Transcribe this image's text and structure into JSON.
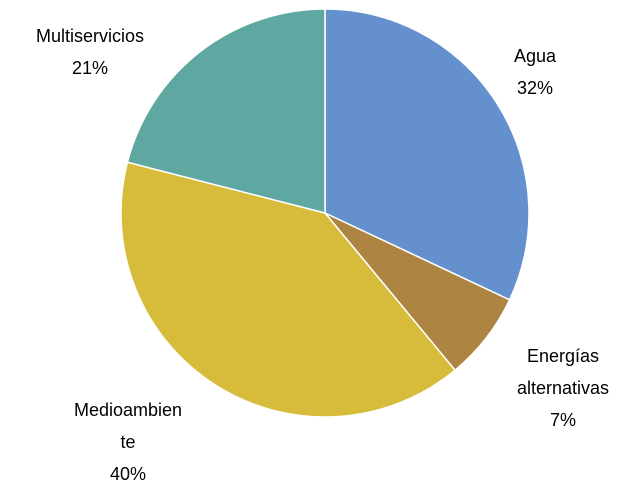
{
  "chart_data": {
    "type": "pie",
    "categories": [
      "Agua",
      "Energías alternativas",
      "Medioambiente",
      "Multiservicios"
    ],
    "values": [
      32,
      7,
      40,
      21
    ],
    "value_labels": [
      "32%",
      "7%",
      "40%",
      "21%"
    ],
    "colors": [
      "#6490cd",
      "#ad8441",
      "#d7bc3b",
      "#5fa8a2"
    ]
  }
}
